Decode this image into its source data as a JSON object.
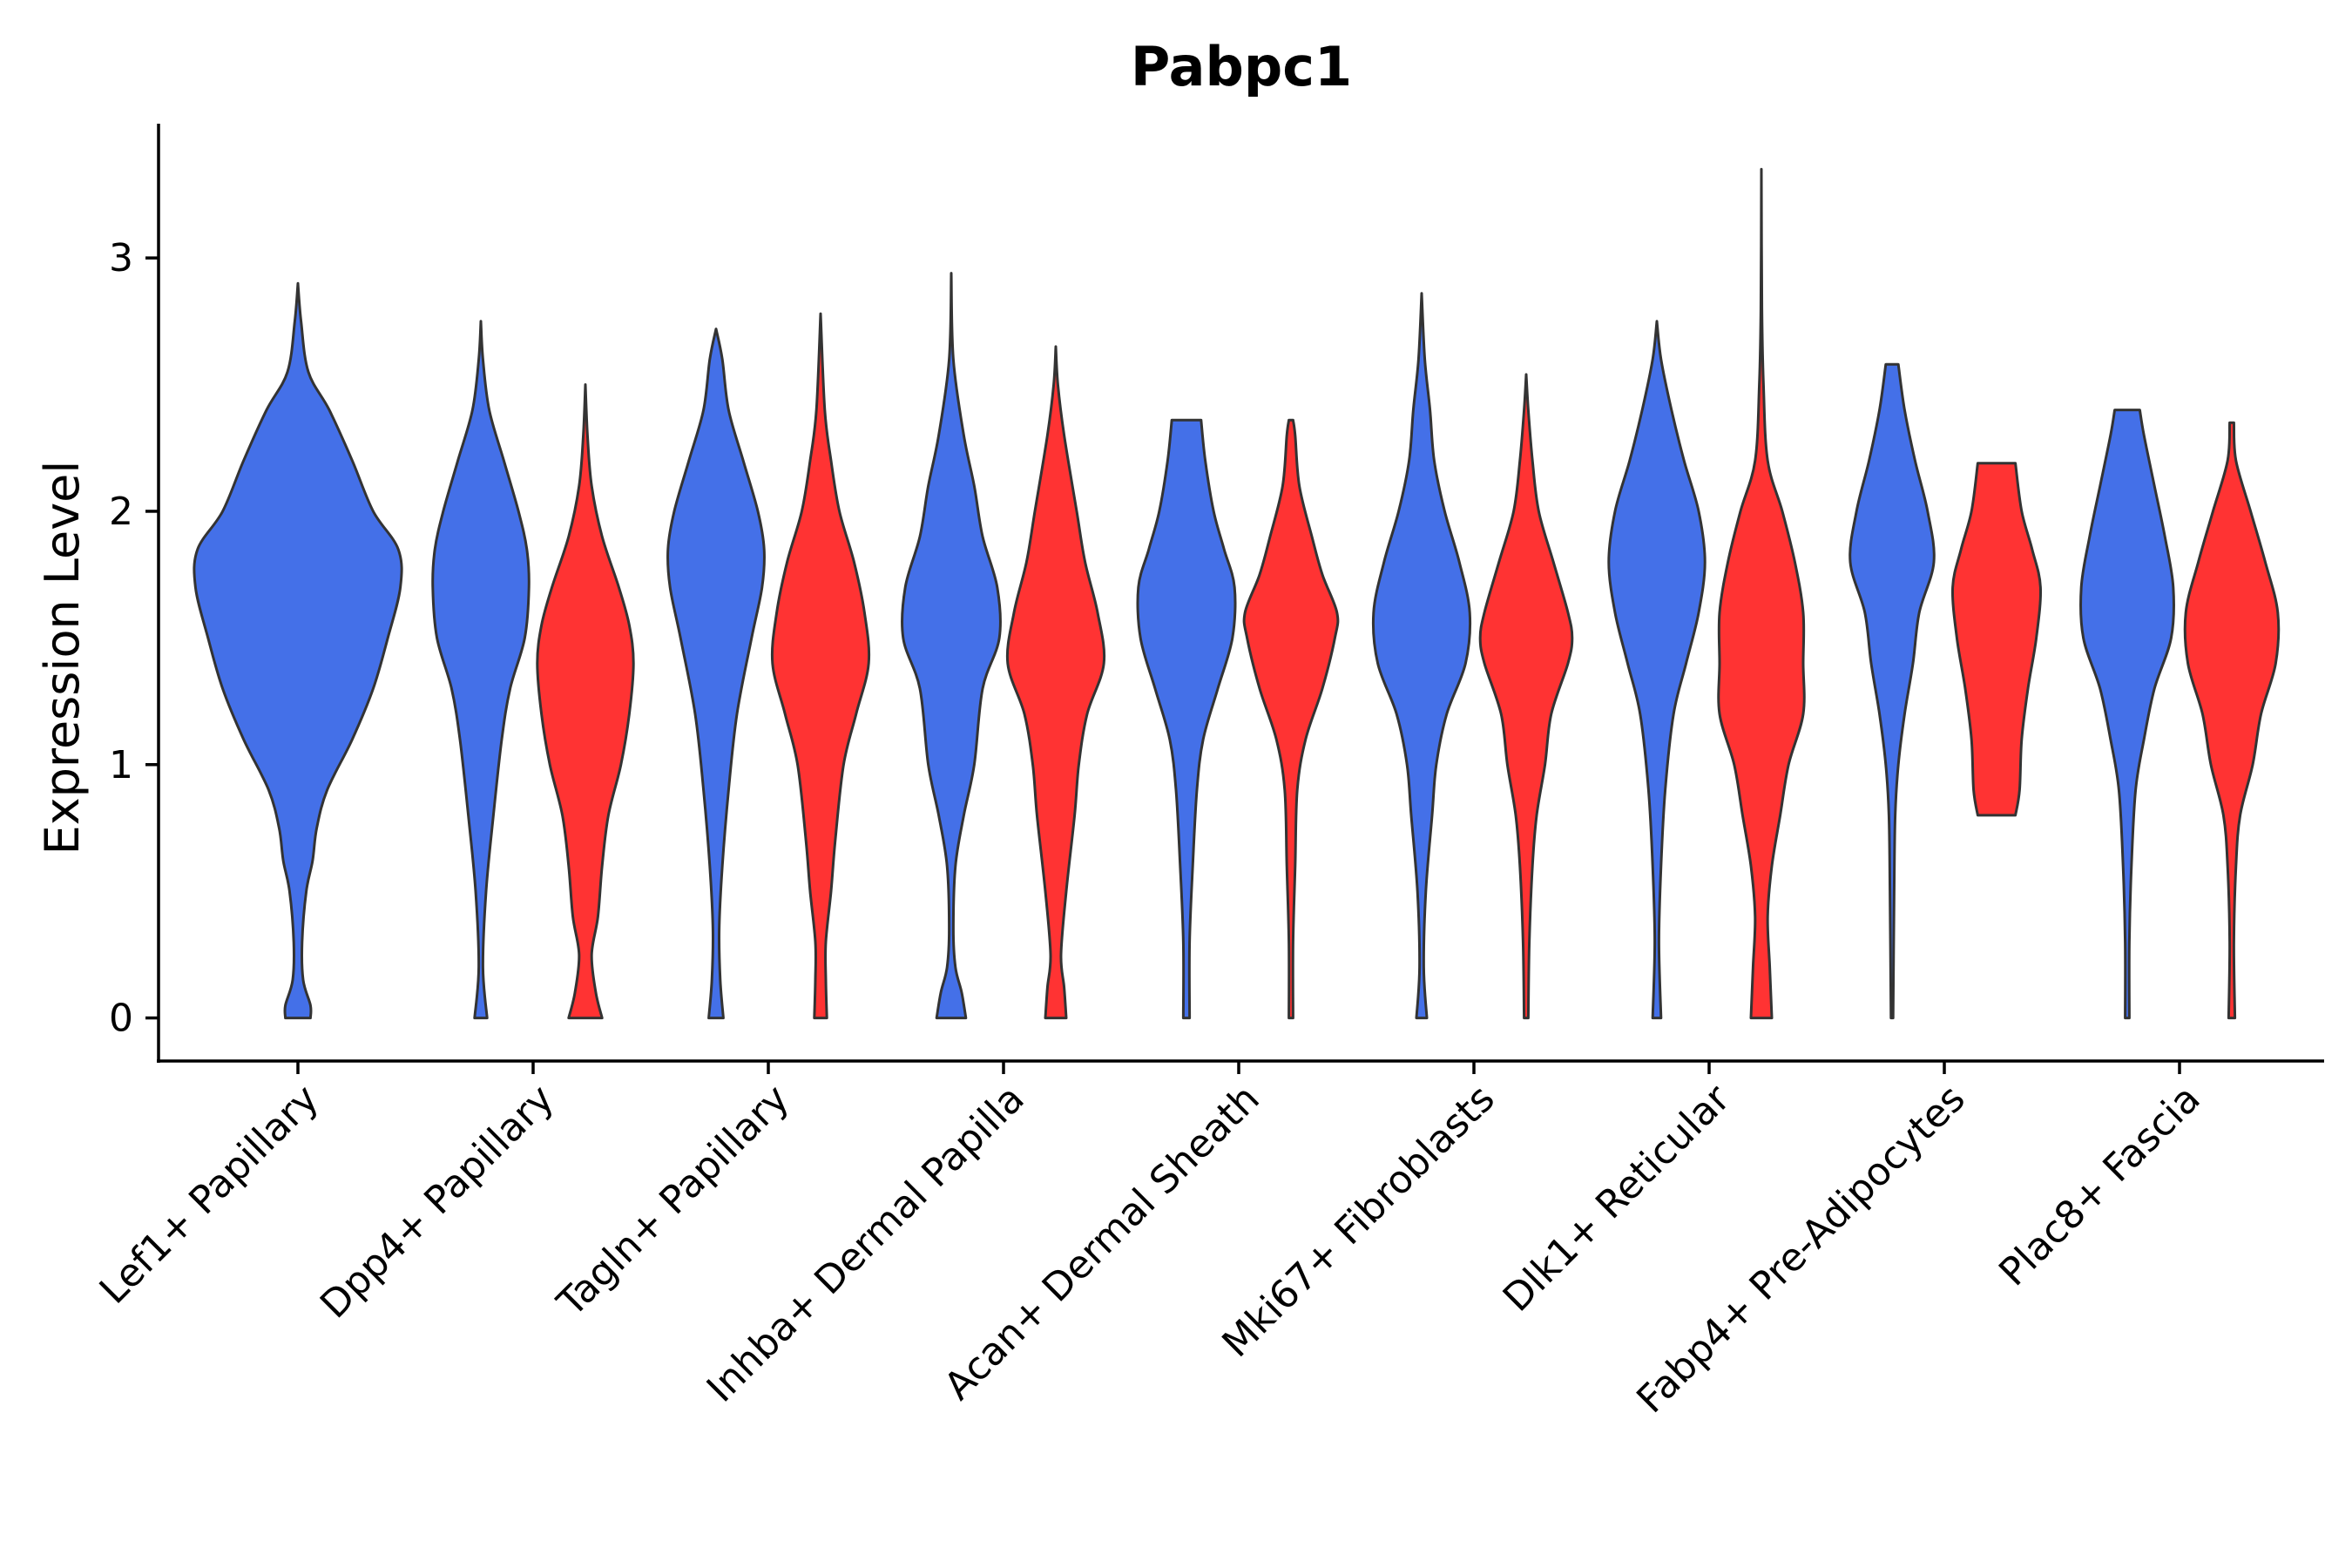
{
  "chart_data": {
    "type": "violin",
    "title": "Pabpc1",
    "xlabel": "",
    "ylabel": "Expression Level",
    "ylim": [
      -0.17,
      3.53
    ],
    "yticks": [
      0,
      1,
      2,
      3
    ],
    "grid": false,
    "legend": "none",
    "colors": {
      "blue": "#4470E8",
      "red": "#FF3333"
    },
    "categories": [
      "Lef1+ Papillary",
      "Dpp4+ Papillary",
      "Tagln+ Papillary",
      "Inhba+ Dermal Papilla",
      "Acan+ Dermal Sheath",
      "Mki67+ Fibroblasts",
      "Dlk1+ Reticular",
      "Fabp4+ Pre-Adipocytes",
      "Plac8+ Fascia"
    ],
    "violins": [
      {
        "category": 0,
        "group": "blue",
        "min": 0,
        "max": 2.9,
        "profile": [
          [
            0,
            0.12
          ],
          [
            0.05,
            0.12
          ],
          [
            0.15,
            0.05
          ],
          [
            0.3,
            0.04
          ],
          [
            0.5,
            0.08
          ],
          [
            0.62,
            0.14
          ],
          [
            0.75,
            0.18
          ],
          [
            0.9,
            0.28
          ],
          [
            1.1,
            0.52
          ],
          [
            1.3,
            0.72
          ],
          [
            1.5,
            0.86
          ],
          [
            1.7,
            0.98
          ],
          [
            1.85,
            0.96
          ],
          [
            2.0,
            0.72
          ],
          [
            2.2,
            0.52
          ],
          [
            2.4,
            0.3
          ],
          [
            2.55,
            0.1
          ],
          [
            2.75,
            0.03
          ],
          [
            2.9,
            0
          ]
        ]
      },
      {
        "category": 1,
        "group": "blue",
        "min": 0,
        "max": 2.75,
        "profile": [
          [
            0,
            0.06
          ],
          [
            0.2,
            0.02
          ],
          [
            0.5,
            0.05
          ],
          [
            0.8,
            0.12
          ],
          [
            1.1,
            0.2
          ],
          [
            1.3,
            0.28
          ],
          [
            1.5,
            0.42
          ],
          [
            1.7,
            0.46
          ],
          [
            1.85,
            0.44
          ],
          [
            2.0,
            0.36
          ],
          [
            2.2,
            0.22
          ],
          [
            2.4,
            0.08
          ],
          [
            2.6,
            0.02
          ],
          [
            2.75,
            0
          ]
        ]
      },
      {
        "category": 1,
        "group": "red",
        "min": 0,
        "max": 2.5,
        "profile": [
          [
            0,
            0.16
          ],
          [
            0.1,
            0.1
          ],
          [
            0.25,
            0.06
          ],
          [
            0.4,
            0.12
          ],
          [
            0.6,
            0.16
          ],
          [
            0.8,
            0.22
          ],
          [
            1.0,
            0.34
          ],
          [
            1.2,
            0.42
          ],
          [
            1.4,
            0.46
          ],
          [
            1.55,
            0.42
          ],
          [
            1.7,
            0.32
          ],
          [
            1.9,
            0.16
          ],
          [
            2.1,
            0.06
          ],
          [
            2.3,
            0.02
          ],
          [
            2.5,
            0
          ]
        ]
      },
      {
        "category": 2,
        "group": "blue",
        "min": 0,
        "max": 2.72,
        "profile": [
          [
            0,
            0.07
          ],
          [
            0.15,
            0.04
          ],
          [
            0.35,
            0.03
          ],
          [
            0.6,
            0.06
          ],
          [
            0.9,
            0.12
          ],
          [
            1.2,
            0.2
          ],
          [
            1.5,
            0.34
          ],
          [
            1.7,
            0.44
          ],
          [
            1.85,
            0.46
          ],
          [
            2.0,
            0.4
          ],
          [
            2.2,
            0.26
          ],
          [
            2.4,
            0.12
          ],
          [
            2.6,
            0.06
          ],
          [
            2.72,
            0
          ]
        ]
      },
      {
        "category": 2,
        "group": "red",
        "min": 0,
        "max": 2.78,
        "profile": [
          [
            0,
            0.06
          ],
          [
            0.15,
            0.05
          ],
          [
            0.3,
            0.05
          ],
          [
            0.5,
            0.1
          ],
          [
            0.7,
            0.14
          ],
          [
            1.0,
            0.22
          ],
          [
            1.2,
            0.34
          ],
          [
            1.4,
            0.46
          ],
          [
            1.6,
            0.42
          ],
          [
            1.8,
            0.32
          ],
          [
            2.0,
            0.18
          ],
          [
            2.2,
            0.1
          ],
          [
            2.4,
            0.04
          ],
          [
            2.78,
            0
          ]
        ]
      },
      {
        "category": 3,
        "group": "blue",
        "min": 0,
        "max": 2.94,
        "profile": [
          [
            0,
            0.14
          ],
          [
            0.1,
            0.1
          ],
          [
            0.2,
            0.04
          ],
          [
            0.35,
            0.02
          ],
          [
            0.6,
            0.04
          ],
          [
            0.8,
            0.12
          ],
          [
            1.0,
            0.22
          ],
          [
            1.3,
            0.3
          ],
          [
            1.5,
            0.46
          ],
          [
            1.7,
            0.44
          ],
          [
            1.9,
            0.3
          ],
          [
            2.1,
            0.22
          ],
          [
            2.3,
            0.12
          ],
          [
            2.6,
            0.02
          ],
          [
            2.94,
            0
          ]
        ]
      },
      {
        "category": 3,
        "group": "red",
        "min": 0,
        "max": 2.65,
        "profile": [
          [
            0,
            0.1
          ],
          [
            0.12,
            0.08
          ],
          [
            0.25,
            0.05
          ],
          [
            0.5,
            0.1
          ],
          [
            0.8,
            0.18
          ],
          [
            1.0,
            0.22
          ],
          [
            1.2,
            0.3
          ],
          [
            1.4,
            0.46
          ],
          [
            1.6,
            0.4
          ],
          [
            1.8,
            0.28
          ],
          [
            2.0,
            0.2
          ],
          [
            2.3,
            0.08
          ],
          [
            2.5,
            0.02
          ],
          [
            2.65,
            0
          ]
        ]
      },
      {
        "category": 4,
        "group": "blue",
        "min": 0,
        "max": 2.36,
        "profile": [
          [
            0,
            0.03
          ],
          [
            0.3,
            0.03
          ],
          [
            0.6,
            0.06
          ],
          [
            0.9,
            0.1
          ],
          [
            1.1,
            0.16
          ],
          [
            1.3,
            0.3
          ],
          [
            1.5,
            0.44
          ],
          [
            1.7,
            0.46
          ],
          [
            1.85,
            0.36
          ],
          [
            2.0,
            0.26
          ],
          [
            2.2,
            0.18
          ],
          [
            2.36,
            0.14
          ]
        ]
      },
      {
        "category": 4,
        "group": "red",
        "min": 0,
        "max": 2.36,
        "profile": [
          [
            0,
            0.02
          ],
          [
            0.3,
            0.02
          ],
          [
            0.6,
            0.04
          ],
          [
            0.9,
            0.06
          ],
          [
            1.1,
            0.14
          ],
          [
            1.3,
            0.3
          ],
          [
            1.5,
            0.42
          ],
          [
            1.6,
            0.44
          ],
          [
            1.75,
            0.3
          ],
          [
            1.9,
            0.2
          ],
          [
            2.1,
            0.08
          ],
          [
            2.3,
            0.04
          ],
          [
            2.36,
            0.02
          ]
        ]
      },
      {
        "category": 5,
        "group": "blue",
        "min": 0,
        "max": 2.86,
        "profile": [
          [
            0,
            0.05
          ],
          [
            0.2,
            0.02
          ],
          [
            0.5,
            0.04
          ],
          [
            0.8,
            0.1
          ],
          [
            1.0,
            0.14
          ],
          [
            1.2,
            0.24
          ],
          [
            1.4,
            0.42
          ],
          [
            1.6,
            0.46
          ],
          [
            1.8,
            0.36
          ],
          [
            2.0,
            0.22
          ],
          [
            2.2,
            0.12
          ],
          [
            2.4,
            0.08
          ],
          [
            2.6,
            0.03
          ],
          [
            2.86,
            0
          ]
        ]
      },
      {
        "category": 5,
        "group": "red",
        "min": 0,
        "max": 2.54,
        "profile": [
          [
            0,
            0.02
          ],
          [
            0.3,
            0.03
          ],
          [
            0.6,
            0.06
          ],
          [
            0.8,
            0.1
          ],
          [
            1.0,
            0.18
          ],
          [
            1.2,
            0.24
          ],
          [
            1.4,
            0.4
          ],
          [
            1.5,
            0.44
          ],
          [
            1.6,
            0.4
          ],
          [
            1.8,
            0.26
          ],
          [
            2.0,
            0.12
          ],
          [
            2.2,
            0.06
          ],
          [
            2.4,
            0.02
          ],
          [
            2.54,
            0
          ]
        ]
      },
      {
        "category": 6,
        "group": "blue",
        "min": 0,
        "max": 2.75,
        "profile": [
          [
            0,
            0.04
          ],
          [
            0.3,
            0.02
          ],
          [
            0.6,
            0.04
          ],
          [
            0.9,
            0.08
          ],
          [
            1.2,
            0.16
          ],
          [
            1.4,
            0.28
          ],
          [
            1.6,
            0.4
          ],
          [
            1.8,
            0.46
          ],
          [
            2.0,
            0.4
          ],
          [
            2.2,
            0.26
          ],
          [
            2.4,
            0.14
          ],
          [
            2.6,
            0.04
          ],
          [
            2.75,
            0
          ]
        ]
      },
      {
        "category": 6,
        "group": "red",
        "min": 0,
        "max": 3.35,
        "profile": [
          [
            0,
            0.1
          ],
          [
            0.2,
            0.08
          ],
          [
            0.4,
            0.06
          ],
          [
            0.6,
            0.1
          ],
          [
            0.8,
            0.18
          ],
          [
            1.0,
            0.26
          ],
          [
            1.2,
            0.4
          ],
          [
            1.4,
            0.4
          ],
          [
            1.6,
            0.4
          ],
          [
            1.8,
            0.32
          ],
          [
            2.0,
            0.2
          ],
          [
            2.2,
            0.06
          ],
          [
            2.5,
            0.02
          ],
          [
            2.8,
            0.005
          ],
          [
            3.35,
            0
          ]
        ]
      },
      {
        "category": 7,
        "group": "blue",
        "min": 0,
        "max": 2.58,
        "profile": [
          [
            0,
            0.01
          ],
          [
            0.5,
            0.02
          ],
          [
            0.8,
            0.03
          ],
          [
            1.0,
            0.06
          ],
          [
            1.2,
            0.12
          ],
          [
            1.4,
            0.2
          ],
          [
            1.6,
            0.26
          ],
          [
            1.8,
            0.4
          ],
          [
            2.0,
            0.34
          ],
          [
            2.2,
            0.22
          ],
          [
            2.4,
            0.12
          ],
          [
            2.58,
            0.06
          ]
        ]
      },
      {
        "category": 7,
        "group": "red",
        "min": 0.8,
        "max": 2.19,
        "profile": [
          [
            0.8,
            0.18
          ],
          [
            0.9,
            0.22
          ],
          [
            1.1,
            0.24
          ],
          [
            1.3,
            0.3
          ],
          [
            1.5,
            0.38
          ],
          [
            1.7,
            0.42
          ],
          [
            1.85,
            0.34
          ],
          [
            2.0,
            0.24
          ],
          [
            2.19,
            0.18
          ]
        ]
      },
      {
        "category": 8,
        "group": "blue",
        "min": 0,
        "max": 2.4,
        "profile": [
          [
            0,
            0.02
          ],
          [
            0.3,
            0.02
          ],
          [
            0.6,
            0.04
          ],
          [
            0.9,
            0.08
          ],
          [
            1.1,
            0.16
          ],
          [
            1.3,
            0.26
          ],
          [
            1.5,
            0.42
          ],
          [
            1.7,
            0.44
          ],
          [
            1.9,
            0.36
          ],
          [
            2.1,
            0.26
          ],
          [
            2.3,
            0.16
          ],
          [
            2.4,
            0.12
          ]
        ]
      },
      {
        "category": 8,
        "group": "red",
        "min": 0,
        "max": 2.35,
        "profile": [
          [
            0,
            0.03
          ],
          [
            0.3,
            0.02
          ],
          [
            0.6,
            0.04
          ],
          [
            0.8,
            0.08
          ],
          [
            1.0,
            0.2
          ],
          [
            1.2,
            0.28
          ],
          [
            1.4,
            0.42
          ],
          [
            1.6,
            0.44
          ],
          [
            1.8,
            0.32
          ],
          [
            2.0,
            0.18
          ],
          [
            2.2,
            0.04
          ],
          [
            2.35,
            0.02
          ]
        ]
      }
    ]
  }
}
